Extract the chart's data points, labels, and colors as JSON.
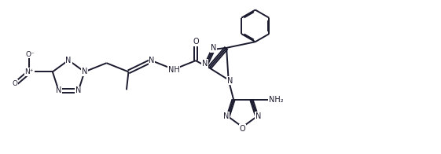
{
  "bg_color": "#ffffff",
  "line_color": "#1a1a2e",
  "text_color": "#1a1a2e",
  "line_width": 1.4,
  "font_size": 7.0,
  "fig_width": 5.61,
  "fig_height": 1.96,
  "dpi": 100,
  "xlim": [
    0,
    11.0
  ],
  "ylim": [
    0,
    3.8
  ]
}
